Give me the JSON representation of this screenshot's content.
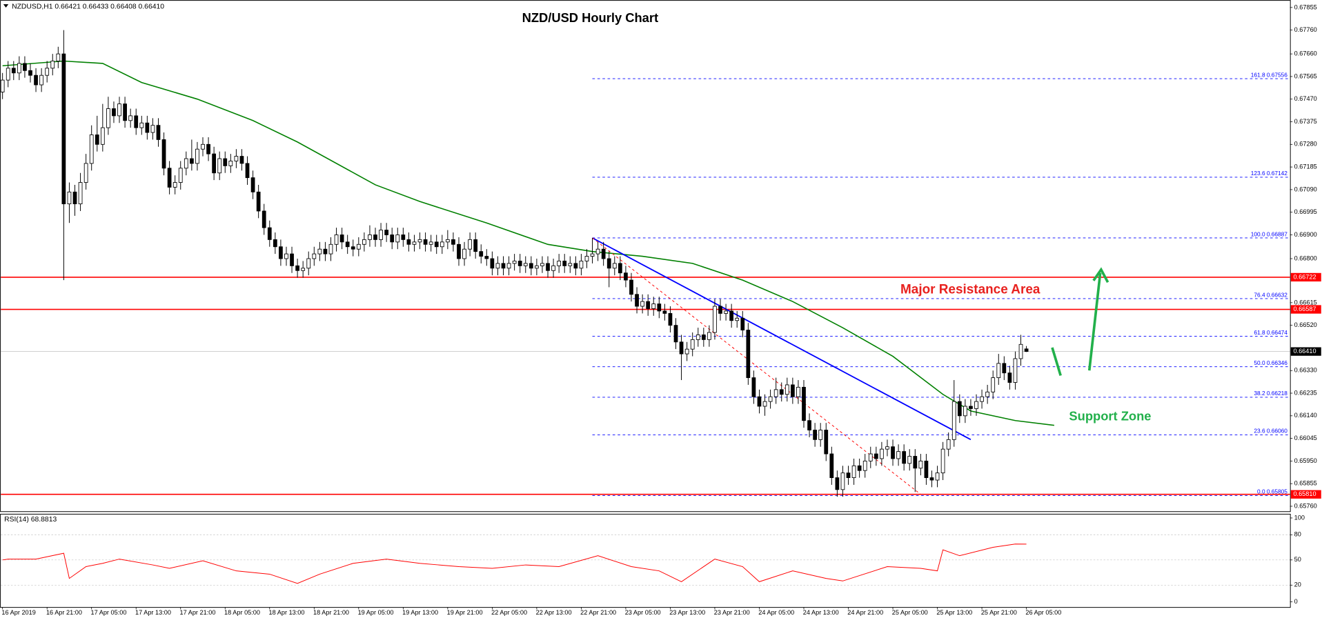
{
  "header": "NZDUSD,H1  0.66421 0.66433 0.66408 0.66410",
  "chart_data": {
    "type": "candlestick",
    "title": "NZD/USD Hourly Chart",
    "categories": [
      "16 Apr 2019",
      null,
      null,
      null,
      null,
      null,
      null,
      null,
      "16 Apr 21:00",
      null,
      null,
      null,
      null,
      null,
      null,
      null,
      "17 Apr 05:00",
      null,
      null,
      null,
      null,
      null,
      null,
      null,
      "17 Apr 13:00",
      null,
      null,
      null,
      null,
      null,
      null,
      null,
      "17 Apr 21:00",
      null,
      null,
      null,
      null,
      null,
      null,
      null,
      "18 Apr 05:00",
      null,
      null,
      null,
      null,
      null,
      null,
      null,
      "18 Apr 13:00",
      null,
      null,
      null,
      null,
      null,
      null,
      null,
      "18 Apr 21:00",
      null,
      null,
      null,
      null,
      null,
      null,
      null,
      "19 Apr 05:00",
      null,
      null,
      null,
      null,
      null,
      null,
      null,
      "19 Apr 13:00",
      null,
      null,
      null,
      null,
      null,
      null,
      null,
      "19 Apr 21:00",
      null,
      null,
      null,
      null,
      null,
      null,
      null,
      "22 Apr 05:00",
      null,
      null,
      null,
      null,
      null,
      null,
      null,
      "22 Apr 13:00",
      null,
      null,
      null,
      null,
      null,
      null,
      null,
      "22 Apr 21:00",
      null,
      null,
      null,
      null,
      null,
      null,
      null,
      "23 Apr 05:00",
      null,
      null,
      null,
      null,
      null,
      null,
      null,
      "23 Apr 13:00",
      null,
      null,
      null,
      null,
      null,
      null,
      null,
      "23 Apr 21:00",
      null,
      null,
      null,
      null,
      null,
      null,
      null,
      "24 Apr 05:00",
      null,
      null,
      null,
      null,
      null,
      null,
      null,
      "24 Apr 13:00",
      null,
      null,
      null,
      null,
      null,
      null,
      null,
      "24 Apr 21:00",
      null,
      null,
      null,
      null,
      null,
      null,
      null,
      "25 Apr 05:00",
      null,
      null,
      null,
      null,
      null,
      null,
      null,
      "25 Apr 13:00",
      null,
      null,
      null,
      null,
      null,
      null,
      null,
      "25 Apr 21:00",
      null,
      null,
      null,
      null,
      null,
      null,
      null,
      "26 Apr 05:00"
    ],
    "open": [
      0.675,
      0.6755,
      0.676,
      0.6758,
      0.6762,
      0.6759,
      0.6757,
      0.6753,
      0.6757,
      0.676,
      0.6763,
      0.6766,
      0.6703,
      0.6708,
      0.6703,
      0.6712,
      0.672,
      0.6732,
      0.6728,
      0.6735,
      0.6743,
      0.674,
      0.6745,
      0.6738,
      0.674,
      0.6735,
      0.6737,
      0.6733,
      0.6736,
      0.673,
      0.6718,
      0.671,
      0.6712,
      0.6718,
      0.6722,
      0.672,
      0.6726,
      0.6728,
      0.6724,
      0.6716,
      0.6722,
      0.6719,
      0.6721,
      0.6723,
      0.672,
      0.6714,
      0.6708,
      0.67,
      0.6693,
      0.6688,
      0.6685,
      0.668,
      0.6682,
      0.6677,
      0.6675,
      0.6676,
      0.668,
      0.6682,
      0.6684,
      0.6682,
      0.6686,
      0.669,
      0.6687,
      0.6685,
      0.6684,
      0.6686,
      0.6688,
      0.669,
      0.6688,
      0.6692,
      0.669,
      0.6687,
      0.669,
      0.6688,
      0.6686,
      0.6687,
      0.6688,
      0.6686,
      0.6687,
      0.6685,
      0.6687,
      0.6688,
      0.6686,
      0.668,
      0.6684,
      0.6688,
      0.6683,
      0.6681,
      0.668,
      0.6676,
      0.6678,
      0.6676,
      0.6678,
      0.6679,
      0.6677,
      0.6678,
      0.6676,
      0.6677,
      0.6678,
      0.6675,
      0.6677,
      0.6679,
      0.6677,
      0.6678,
      0.6676,
      0.6679,
      0.6681,
      0.6682,
      0.6684,
      0.668,
      0.6676,
      0.6678,
      0.6674,
      0.6671,
      0.6665,
      0.666,
      0.6662,
      0.6659,
      0.6661,
      0.6658,
      0.6657,
      0.6652,
      0.6645,
      0.664,
      0.6642,
      0.6646,
      0.6648,
      0.6646,
      0.6649,
      0.666,
      0.6657,
      0.6658,
      0.6654,
      0.6655,
      0.665,
      0.663,
      0.6622,
      0.6618,
      0.662,
      0.6622,
      0.6625,
      0.6623,
      0.6627,
      0.6622,
      0.6626,
      0.6612,
      0.6608,
      0.6604,
      0.6608,
      0.6598,
      0.6588,
      0.6583,
      0.659,
      0.6588,
      0.6593,
      0.6591,
      0.6595,
      0.6598,
      0.6596,
      0.66,
      0.6601,
      0.6596,
      0.6599,
      0.6594,
      0.6597,
      0.6592,
      0.6595,
      0.6588,
      0.6587,
      0.659,
      0.66,
      0.6604,
      0.662,
      0.6614,
      0.6618,
      0.6617,
      0.662,
      0.6622,
      0.6624,
      0.663,
      0.6636,
      0.6632,
      0.6628,
      0.6638,
      0.66421
    ],
    "high": [
      0.6758,
      0.6763,
      0.6763,
      0.6765,
      0.6765,
      0.6762,
      0.676,
      0.676,
      0.6763,
      0.6766,
      0.6769,
      0.6776,
      0.6712,
      0.6711,
      0.6716,
      0.6724,
      0.6736,
      0.674,
      0.6745,
      0.6748,
      0.6746,
      0.6748,
      0.6748,
      0.6743,
      0.6743,
      0.674,
      0.674,
      0.6739,
      0.6739,
      0.6733,
      0.6721,
      0.6715,
      0.6721,
      0.6725,
      0.673,
      0.6729,
      0.6731,
      0.6731,
      0.6727,
      0.6725,
      0.6725,
      0.6724,
      0.6726,
      0.6726,
      0.6723,
      0.6717,
      0.6711,
      0.6703,
      0.6696,
      0.6691,
      0.6688,
      0.6685,
      0.6685,
      0.668,
      0.6679,
      0.6683,
      0.6685,
      0.6687,
      0.6687,
      0.6689,
      0.6693,
      0.6693,
      0.669,
      0.6688,
      0.6689,
      0.6691,
      0.6694,
      0.6693,
      0.6695,
      0.6695,
      0.6693,
      0.6693,
      0.6693,
      0.6691,
      0.669,
      0.6691,
      0.6691,
      0.669,
      0.669,
      0.669,
      0.6692,
      0.6691,
      0.6689,
      0.6687,
      0.6691,
      0.6691,
      0.6686,
      0.6684,
      0.6683,
      0.6681,
      0.6681,
      0.6681,
      0.6682,
      0.6682,
      0.6681,
      0.6681,
      0.668,
      0.6681,
      0.6681,
      0.668,
      0.6682,
      0.6682,
      0.6681,
      0.6681,
      0.6682,
      0.6684,
      0.66887,
      0.6687,
      0.6687,
      0.6683,
      0.6681,
      0.6681,
      0.6677,
      0.6674,
      0.6668,
      0.6665,
      0.6665,
      0.6664,
      0.6664,
      0.6661,
      0.666,
      0.6655,
      0.6648,
      0.6645,
      0.6649,
      0.6651,
      0.6651,
      0.6652,
      0.6663,
      0.6663,
      0.6661,
      0.6661,
      0.6658,
      0.6658,
      0.6653,
      0.6633,
      0.6625,
      0.6623,
      0.6625,
      0.663,
      0.6628,
      0.663,
      0.663,
      0.6629,
      0.6629,
      0.6615,
      0.6611,
      0.6611,
      0.6611,
      0.6601,
      0.6591,
      0.6593,
      0.6593,
      0.6596,
      0.6596,
      0.6598,
      0.6601,
      0.6601,
      0.6603,
      0.6604,
      0.6604,
      0.6602,
      0.6602,
      0.66,
      0.66,
      0.6598,
      0.6598,
      0.6591,
      0.6593,
      0.6603,
      0.6607,
      0.6629,
      0.6623,
      0.6621,
      0.6621,
      0.6623,
      0.6625,
      0.6627,
      0.6633,
      0.664,
      0.6639,
      0.6635,
      0.6641,
      0.6648,
      0.66433
    ],
    "low": [
      0.6747,
      0.6752,
      0.6755,
      0.6755,
      0.6756,
      0.6754,
      0.675,
      0.675,
      0.6754,
      0.6757,
      0.676,
      0.6671,
      0.6695,
      0.6698,
      0.67,
      0.6709,
      0.6717,
      0.6725,
      0.6725,
      0.6732,
      0.6737,
      0.6737,
      0.6735,
      0.6735,
      0.6732,
      0.6732,
      0.673,
      0.673,
      0.6727,
      0.6715,
      0.6707,
      0.6707,
      0.6709,
      0.6715,
      0.6717,
      0.6717,
      0.6723,
      0.6721,
      0.6713,
      0.6713,
      0.6716,
      0.6716,
      0.6718,
      0.6717,
      0.6711,
      0.6705,
      0.6697,
      0.669,
      0.6685,
      0.6682,
      0.6677,
      0.6677,
      0.6674,
      0.6672,
      0.6672,
      0.6673,
      0.6677,
      0.6679,
      0.6679,
      0.6679,
      0.6683,
      0.6684,
      0.6682,
      0.6681,
      0.6681,
      0.6683,
      0.6685,
      0.6685,
      0.6685,
      0.6687,
      0.6684,
      0.6684,
      0.6685,
      0.6683,
      0.6683,
      0.6684,
      0.6683,
      0.6683,
      0.6682,
      0.6682,
      0.6684,
      0.6683,
      0.6677,
      0.6677,
      0.6681,
      0.668,
      0.6678,
      0.6677,
      0.6673,
      0.6673,
      0.6673,
      0.6673,
      0.6675,
      0.6674,
      0.6674,
      0.6673,
      0.6673,
      0.6674,
      0.6672,
      0.6672,
      0.6674,
      0.6674,
      0.6674,
      0.6673,
      0.6673,
      0.6676,
      0.6678,
      0.6679,
      0.6677,
      0.6668,
      0.6673,
      0.6671,
      0.6668,
      0.6662,
      0.6657,
      0.6657,
      0.6656,
      0.6656,
      0.6655,
      0.6654,
      0.6649,
      0.6642,
      0.6629,
      0.6637,
      0.6639,
      0.6643,
      0.6643,
      0.6643,
      0.6646,
      0.6654,
      0.6654,
      0.6651,
      0.6651,
      0.6647,
      0.6627,
      0.6619,
      0.6615,
      0.6614,
      0.6617,
      0.6619,
      0.662,
      0.662,
      0.6619,
      0.6619,
      0.6609,
      0.6605,
      0.6601,
      0.6601,
      0.6595,
      0.6585,
      0.658,
      0.658,
      0.6585,
      0.6585,
      0.6588,
      0.6588,
      0.6592,
      0.6593,
      0.6593,
      0.6597,
      0.6593,
      0.6593,
      0.6591,
      0.6591,
      0.6582,
      0.6589,
      0.6585,
      0.6584,
      0.6584,
      0.6587,
      0.6597,
      0.6601,
      0.6611,
      0.6611,
      0.6614,
      0.6614,
      0.6617,
      0.6619,
      0.6621,
      0.6627,
      0.6629,
      0.6625,
      0.6625,
      0.6635,
      0.66408
    ],
    "close": [
      0.6755,
      0.676,
      0.6758,
      0.6762,
      0.6759,
      0.6757,
      0.6753,
      0.6757,
      0.676,
      0.6763,
      0.6766,
      0.6703,
      0.6708,
      0.6703,
      0.6712,
      0.672,
      0.6732,
      0.6728,
      0.6735,
      0.6743,
      0.674,
      0.6745,
      0.6738,
      0.674,
      0.6735,
      0.6737,
      0.6733,
      0.6736,
      0.673,
      0.6718,
      0.671,
      0.6712,
      0.6718,
      0.6722,
      0.672,
      0.6726,
      0.6728,
      0.6724,
      0.6716,
      0.6722,
      0.6719,
      0.6721,
      0.6723,
      0.672,
      0.6714,
      0.6708,
      0.67,
      0.6693,
      0.6688,
      0.6685,
      0.668,
      0.6682,
      0.6677,
      0.6675,
      0.6676,
      0.668,
      0.6682,
      0.6684,
      0.6682,
      0.6686,
      0.669,
      0.6687,
      0.6685,
      0.6684,
      0.6686,
      0.6688,
      0.669,
      0.6688,
      0.6692,
      0.669,
      0.6687,
      0.669,
      0.6688,
      0.6686,
      0.6687,
      0.6688,
      0.6686,
      0.6687,
      0.6685,
      0.6687,
      0.6688,
      0.6686,
      0.668,
      0.6684,
      0.6688,
      0.6683,
      0.6681,
      0.668,
      0.6676,
      0.6678,
      0.6676,
      0.6678,
      0.6679,
      0.6677,
      0.6678,
      0.6676,
      0.6677,
      0.6678,
      0.6675,
      0.6677,
      0.6679,
      0.6677,
      0.6678,
      0.6676,
      0.6679,
      0.6681,
      0.6682,
      0.6684,
      0.668,
      0.6676,
      0.6678,
      0.6674,
      0.6671,
      0.6665,
      0.666,
      0.6662,
      0.6659,
      0.6661,
      0.6658,
      0.6657,
      0.6652,
      0.6645,
      0.664,
      0.6642,
      0.6646,
      0.6648,
      0.6646,
      0.6649,
      0.666,
      0.6657,
      0.6658,
      0.6654,
      0.6655,
      0.665,
      0.663,
      0.6622,
      0.6618,
      0.662,
      0.6622,
      0.6625,
      0.6623,
      0.6627,
      0.6622,
      0.6626,
      0.6612,
      0.6608,
      0.6604,
      0.6608,
      0.6598,
      0.6588,
      0.6583,
      0.659,
      0.6588,
      0.6593,
      0.6591,
      0.6595,
      0.6598,
      0.6596,
      0.66,
      0.6601,
      0.6596,
      0.6599,
      0.6594,
      0.6597,
      0.6592,
      0.6595,
      0.6588,
      0.6587,
      0.659,
      0.66,
      0.6604,
      0.662,
      0.6614,
      0.6618,
      0.6617,
      0.662,
      0.6622,
      0.6624,
      0.663,
      0.6636,
      0.6632,
      0.6628,
      0.6638,
      0.6644,
      0.6641
    ],
    "up_color": "#ffffff",
    "down_color": "#000000",
    "ylim": [
      0.65745,
      0.6787
    ],
    "yticks": [
      0.67855,
      {
        "value": 0.6776,
        "label": "0.67760"
      },
      {
        "value": 0.6766,
        "label": "0.67660"
      },
      0.67565,
      {
        "value": 0.6747,
        "label": "0.67470"
      },
      0.67375,
      {
        "value": 0.6728,
        "label": "0.67280"
      },
      0.67185,
      {
        "value": 0.6709,
        "label": "0.67090"
      },
      0.66995,
      {
        "value": 0.669,
        "label": "0.66900"
      },
      {
        "value": 0.668,
        "label": "0.66800"
      },
      0.66615,
      {
        "value": 0.6652,
        "label": "0.66520"
      },
      {
        "value": 0.6633,
        "label": "0.66330"
      },
      0.66235,
      {
        "value": 0.6614,
        "label": "0.66140"
      },
      0.66045,
      {
        "value": 0.6595,
        "label": "0.65950"
      },
      0.65855,
      {
        "value": 0.6576,
        "label": "0.65760"
      }
    ],
    "moving_average": {
      "color": "#008000",
      "x": [
        0,
        11,
        18,
        25,
        35,
        45,
        53,
        67,
        75,
        87,
        98,
        106,
        115,
        124,
        133,
        142,
        151,
        160,
        169,
        174,
        182,
        189
      ],
      "values": [
        0.6761,
        0.6763,
        0.6762,
        0.6754,
        0.6747,
        0.6738,
        0.6729,
        0.6711,
        0.6704,
        0.6695,
        0.6686,
        0.6683,
        0.6681,
        0.6678,
        0.6671,
        0.6662,
        0.6651,
        0.6639,
        0.6623,
        0.6616,
        0.6612,
        0.661
      ]
    },
    "trendlines": [
      {
        "color": "#0000ff",
        "x": [
          106,
          174
        ],
        "values": [
          0.66887,
          0.6604
        ]
      },
      {
        "color": "#ff0000",
        "x": [
          106,
          165
        ],
        "values": [
          0.66887,
          0.6581
        ]
      }
    ],
    "fib_levels": [
      {
        "value": 0.67556,
        "label": "161.8 0.67556"
      },
      {
        "value": 0.67142,
        "label": "123.6 0.67142"
      },
      {
        "value": 0.66887,
        "label": "100.0 0.66887"
      },
      {
        "value": 0.66632,
        "label": "76.4 0.66632"
      },
      {
        "value": 0.66474,
        "label": "61.8 0.66474"
      },
      {
        "value": 0.66346,
        "label": "50.0 0.66346"
      },
      {
        "value": 0.66218,
        "label": "38.2 0.66218"
      },
      {
        "value": 0.6606,
        "label": "23.6 0.66060"
      },
      {
        "value": 0.65805,
        "label": "0.0 0.65805"
      }
    ],
    "fib_color": "#0000ff",
    "levels": [
      0.66722,
      0.66587,
      {
        "value": 0.6581,
        "label": "0.65810"
      }
    ],
    "level_color": "#ff0000",
    "last_price": {
      "value": 0.6641,
      "label": "0.66410"
    },
    "annotations": [
      {
        "text": "Major Resistance Area",
        "color": "#e8221f"
      },
      {
        "text": "Support Zone",
        "color": "#22b04b"
      }
    ],
    "rsi": {
      "title": "RSI(14) 68.8813",
      "color": "#ff0000",
      "x": [
        0,
        1,
        6,
        11,
        12,
        15,
        18,
        21,
        27,
        30,
        36,
        42,
        48,
        53,
        57,
        63,
        69,
        75,
        82,
        88,
        94,
        100,
        107,
        113,
        118,
        122,
        128,
        133,
        136,
        142,
        148,
        151,
        159,
        165,
        168,
        169,
        172,
        178,
        182,
        184
      ],
      "values": [
        50,
        51,
        51,
        58,
        28,
        42,
        46,
        51,
        44,
        40,
        49,
        37,
        33,
        22,
        33,
        46,
        51,
        46,
        42,
        40,
        44,
        42,
        55,
        42,
        37,
        24,
        51,
        42,
        24,
        37,
        28,
        25,
        42,
        40,
        37,
        62,
        55,
        65,
        69,
        68.8813
      ],
      "ylim": [
        0,
        100
      ],
      "yticks": [
        100,
        80,
        50,
        20,
        0
      ],
      "levels": [
        80,
        50,
        20
      ]
    }
  }
}
